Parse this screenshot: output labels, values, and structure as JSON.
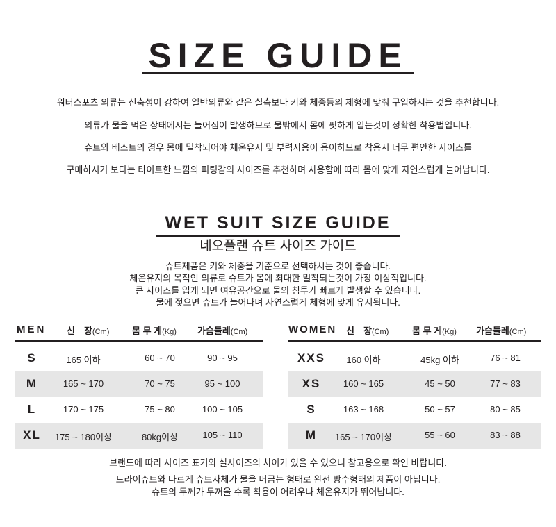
{
  "title": "SIZE GUIDE",
  "intro": [
    "워터스포츠 의류는 신축성이 강하여 일반의류와 같은 실측보다 키와 체중등의 체형에 맞춰 구입하시는 것을 추천합니다.",
    "의류가 물을 먹은 상태에서는 늘어짐이 발생하므로 물밖에서 몸에 핏하게 입는것이 정확한 착용법입니다.",
    "슈트와 베스트의 경우 몸에 밀착되어야 체온유지 및 부력사용이 용이하므로 착용시 너무 편안한 사이즈를",
    "구매하시기 보다는 타이트한 느낌의 피팅감의 사이즈를 추천하며 사용함에 따라 몸에 맞게 자연스럽게 늘어납니다."
  ],
  "wetsuit": {
    "title": "WET SUIT SIZE GUIDE",
    "subtitle": "네오플랜 슈트 사이즈 가이드",
    "lines": [
      "슈트제품은 키와 체중을 기준으로 선택하시는 것이 좋습니다.",
      "체온유지의 목적인 의류로 슈트가 몸에 최대한 밀착되는것이 가장 이상적입니다.",
      "큰 사이즈를 입게 되면 여유공간으로 물의 침투가 빠르게 발생할 수 있습니다.",
      "물에 젖으면 슈트가 늘어나며 자연스럽게 체형에 맞게 유지됩니다."
    ]
  },
  "headers": {
    "height": "신　장",
    "height_unit": "(Cm)",
    "weight": "몸 무 게",
    "weight_unit": "(Kg)",
    "chest": "가슴둘레",
    "chest_unit": "(Cm)"
  },
  "men": {
    "label": "MEN",
    "rows": [
      {
        "size": "S",
        "height": "165 이하",
        "weight": "60 ~ 70",
        "chest": "90 ~ 95"
      },
      {
        "size": "M",
        "height": "165 ~ 170",
        "weight": "70 ~ 75",
        "chest": "95 ~ 100"
      },
      {
        "size": "L",
        "height": "170 ~ 175",
        "weight": "75 ~ 80",
        "chest": "100 ~ 105"
      },
      {
        "size": "XL",
        "height": "175 ~ 180이상",
        "weight": "80kg이상",
        "chest": "105 ~ 110"
      }
    ]
  },
  "women": {
    "label": "WOMEN",
    "rows": [
      {
        "size": "XXS",
        "height": "160 이하",
        "weight": "45kg 이하",
        "chest": "76 ~ 81"
      },
      {
        "size": "XS",
        "height": "160 ~ 165",
        "weight": "45 ~ 50",
        "chest": "77 ~ 83"
      },
      {
        "size": "S",
        "height": "163 ~ 168",
        "weight": "50 ~ 57",
        "chest": "80 ~ 85"
      },
      {
        "size": "M",
        "height": "165 ~ 170이상",
        "weight": "55 ~ 60",
        "chest": "83 ~ 88"
      }
    ]
  },
  "footer": [
    "브랜드에 따라 사이즈 표기와 실사이즈의 차이가 있을 수 있으니 참고용으로 확인 바랍니다.",
    "드라이슈트와 다르게 슈트자체가 물을 머금는 형태로 완전 방수형태의 제품이 아닙니다.",
    "슈트의 두께가 두꺼울 수록 착용이 어려우나 체온유지가 뛰어납니다."
  ]
}
